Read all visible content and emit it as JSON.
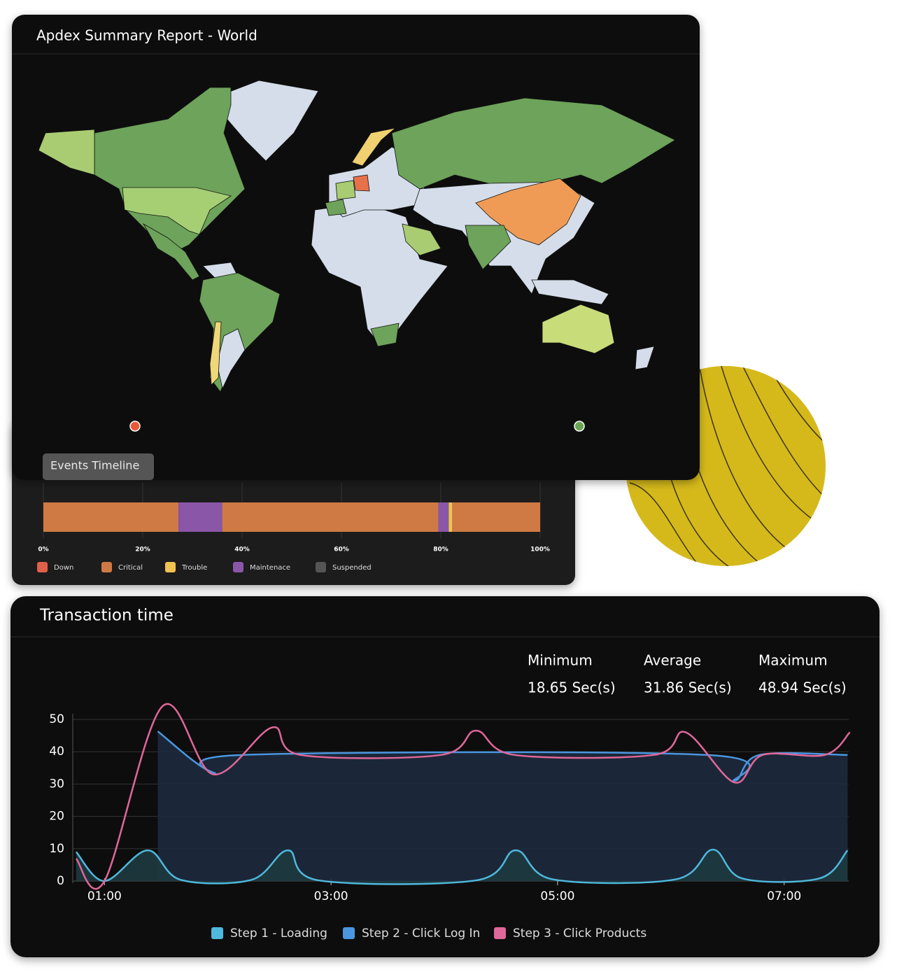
{
  "map_panel": {
    "title": "Apdex Summary Report - World"
  },
  "chart_data": [
    {
      "type": "timeline",
      "title": "Events Timeline",
      "xlim": [
        0,
        100
      ],
      "xticks": [
        {
          "value": 0,
          "label": "0%"
        },
        {
          "value": 20,
          "label": "20%"
        },
        {
          "value": 40,
          "label": "40%"
        },
        {
          "value": 60,
          "label": "60%"
        },
        {
          "value": 80,
          "label": "80%"
        },
        {
          "value": 100,
          "label": "100%"
        }
      ],
      "grid": true,
      "series": [
        {
          "name": "Down",
          "color": "#e0604a"
        },
        {
          "name": "Critical",
          "color": "#cf7a44"
        },
        {
          "name": "Trouble",
          "color": "#f0c350"
        },
        {
          "name": "Maintenace",
          "color": "#8a57a8"
        },
        {
          "name": "Suspended",
          "color": "#555555"
        }
      ],
      "segments": [
        {
          "status": 1,
          "value": 27.2
        },
        {
          "status": 3,
          "value": 8.8
        },
        {
          "status": 1,
          "value": 43.5
        },
        {
          "status": 3,
          "value": 2.1
        },
        {
          "status": 2,
          "value": 0.7
        },
        {
          "status": 1,
          "value": 17.7
        }
      ]
    },
    {
      "type": "line",
      "title": "Transaction time",
      "stats": [
        {
          "label": "Minimum",
          "value": "18.65 Sec(s)"
        },
        {
          "label": "Average",
          "value": "31.86 Sec(s)"
        },
        {
          "label": "Maximum",
          "value": "48.94 Sec(s)"
        }
      ],
      "xlim": [
        0.72,
        7.57
      ],
      "xticks": [
        {
          "value": 1,
          "label": "01:00"
        },
        {
          "value": 3,
          "label": "03:00"
        },
        {
          "value": 5,
          "label": "05:00"
        },
        {
          "value": 7,
          "label": "07:00"
        }
      ],
      "ylim": [
        0,
        50
      ],
      "yticks": [
        0,
        10,
        20,
        30,
        40,
        50
      ],
      "grid": true,
      "legend": "bottom",
      "series": [
        {
          "name": "Step 1 - Loading",
          "color": "#4fb8dc",
          "x": [
            0.75,
            1.0,
            1.38,
            1.67,
            2.3,
            2.62,
            2.89,
            4.28,
            4.63,
            4.96,
            6.04,
            6.37,
            6.63,
            7.31,
            7.56
          ],
          "values": [
            9,
            0,
            9.5,
            0.4,
            0.4,
            9.5,
            0.2,
            0.2,
            9.5,
            0.5,
            0.5,
            9.7,
            0.8,
            0.8,
            9.5
          ]
        },
        {
          "name": "Step 2 - Click Log In",
          "color": "#4a96e0",
          "x": [
            1.47,
            1.96,
            2.21,
            6.32,
            6.56,
            6.78,
            7.56
          ],
          "values": [
            46.3,
            33.5,
            39,
            39,
            31,
            39,
            39
          ]
        },
        {
          "name": "Step 3 - Click Products",
          "color": "#e0679a",
          "x": [
            0.75,
            1.0,
            1.51,
            1.96,
            2.48,
            2.73,
            3.97,
            4.28,
            4.62,
            5.85,
            6.13,
            6.56,
            6.81,
            7.36,
            7.58
          ],
          "values": [
            6.9,
            0,
            54,
            33,
            47.5,
            39,
            39,
            46.5,
            39,
            39,
            46,
            30.5,
            39,
            39,
            46
          ]
        }
      ]
    }
  ]
}
